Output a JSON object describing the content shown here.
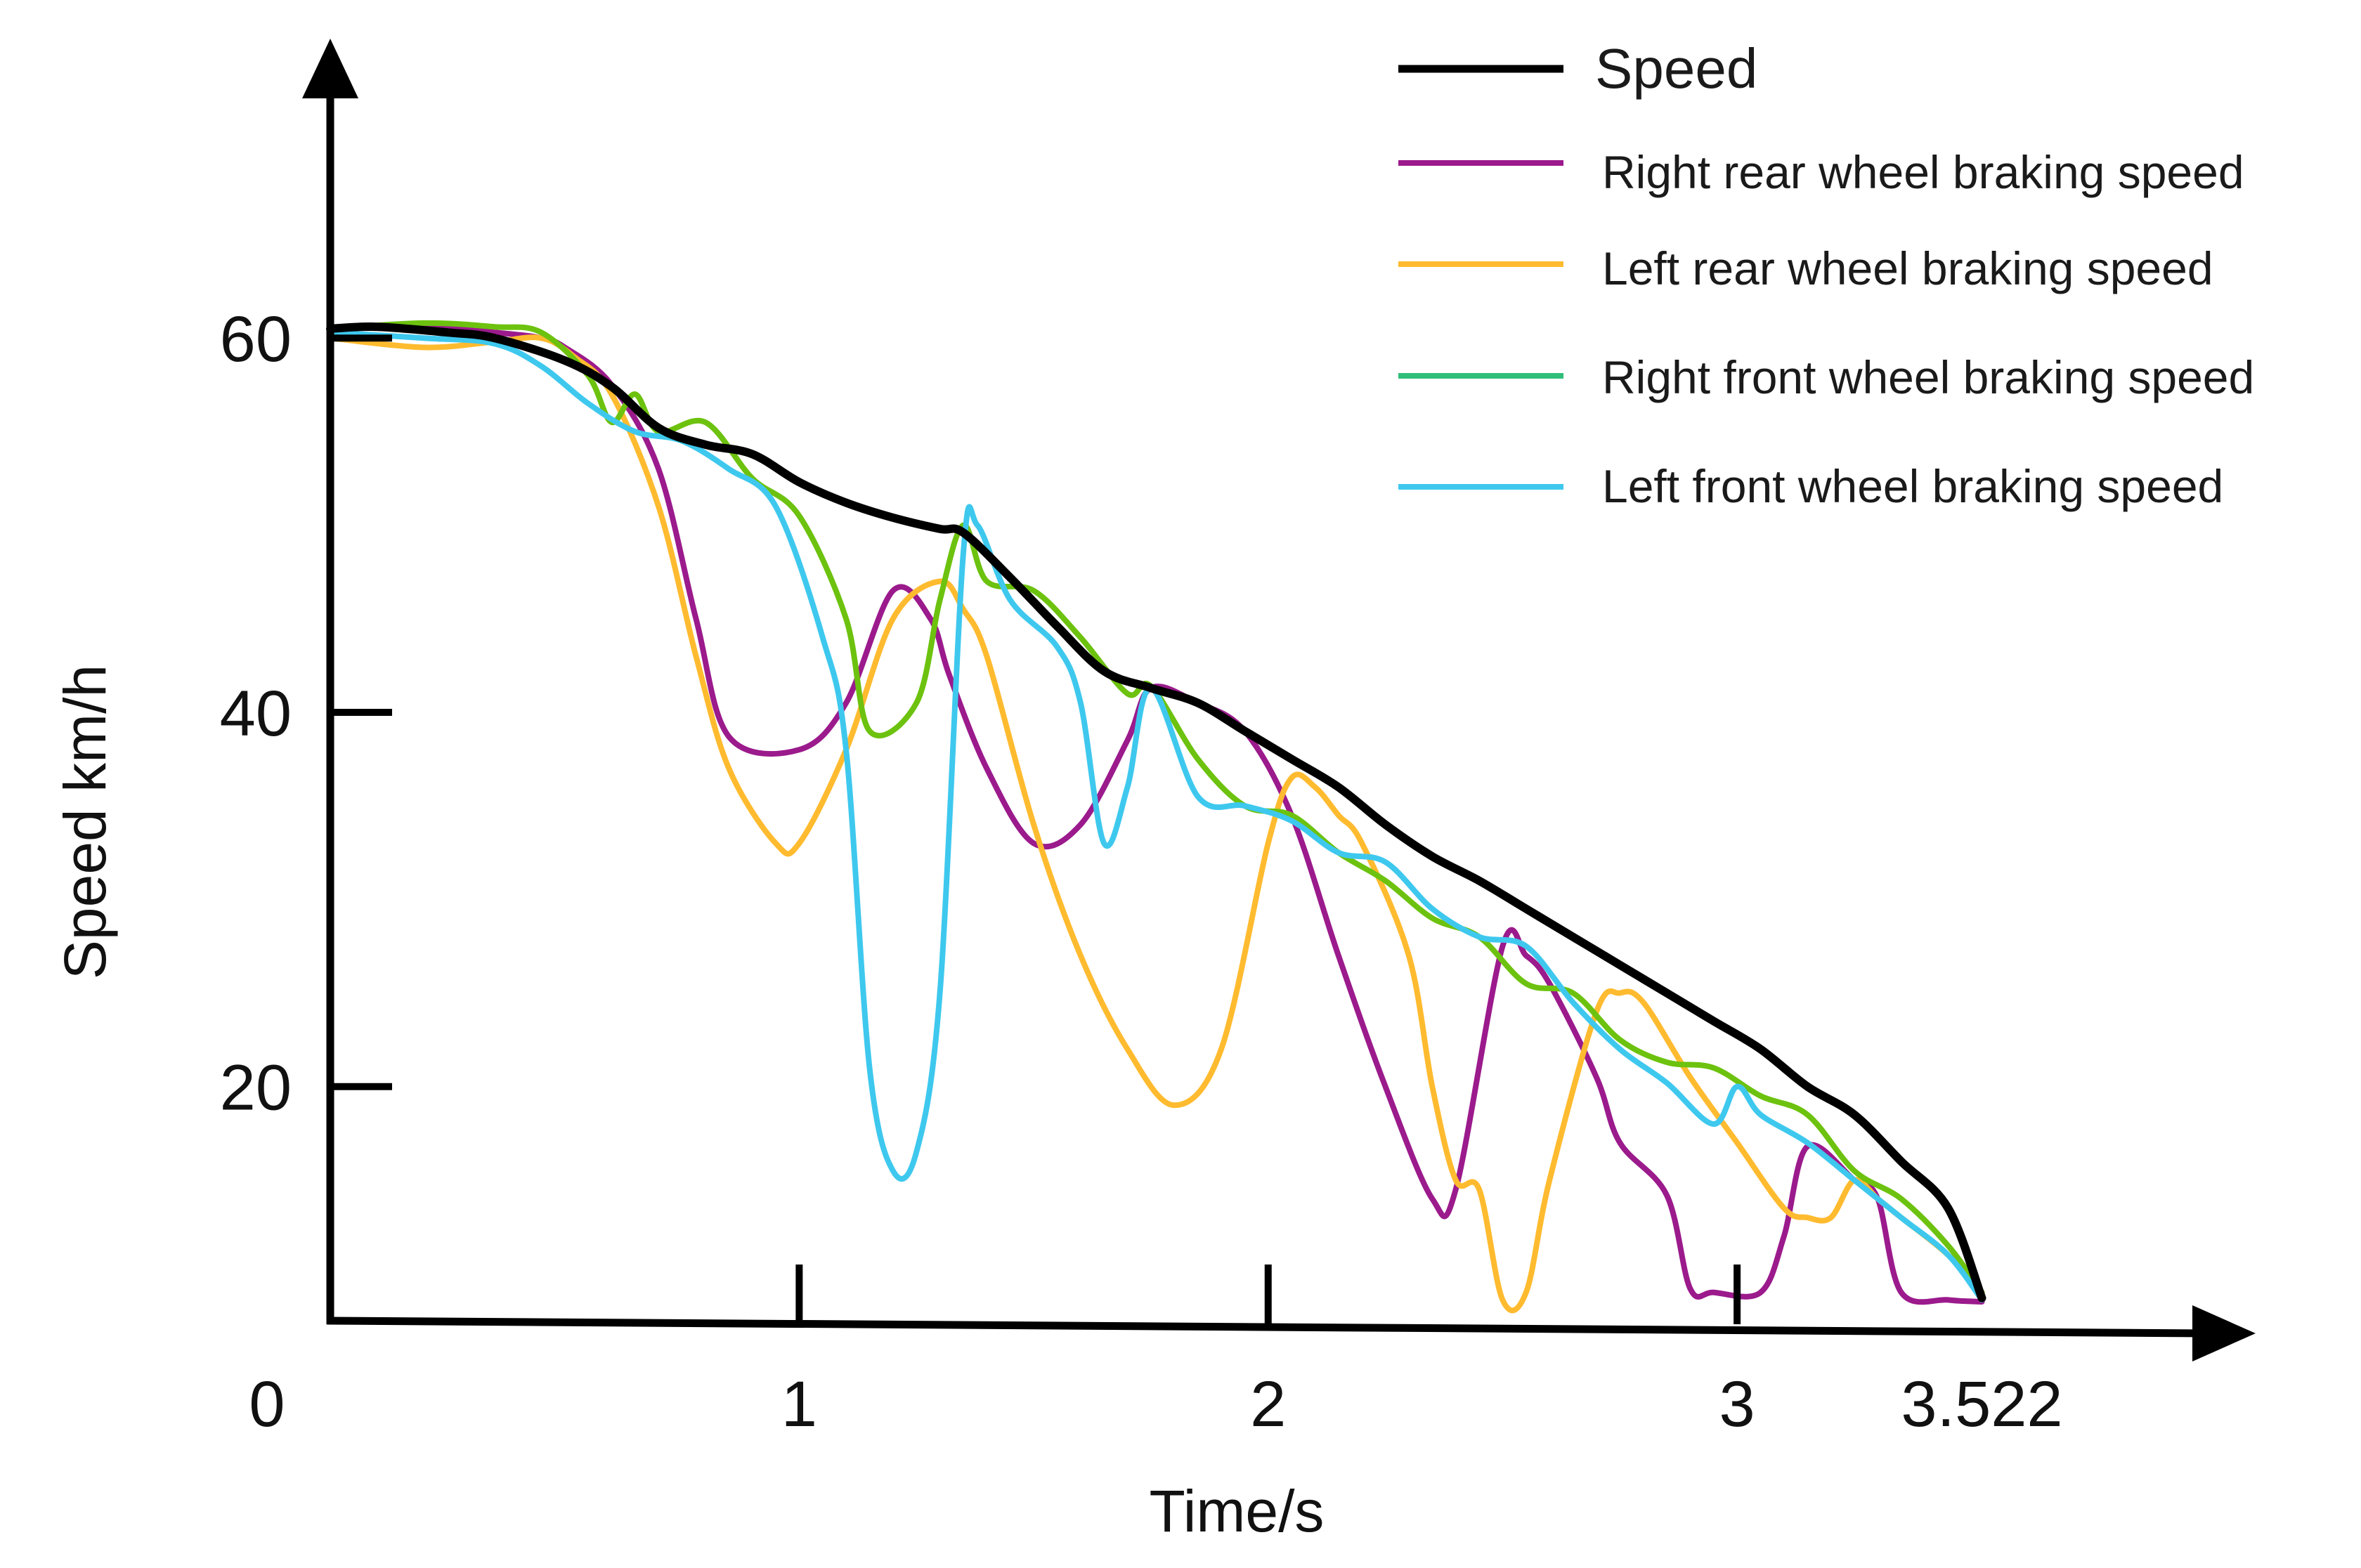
{
  "chart_data": {
    "type": "line",
    "title": "",
    "xlabel": "Time/s",
    "ylabel": "Speed km/h",
    "xlim": [
      0,
      3.8
    ],
    "ylim": [
      7.3,
      76
    ],
    "x_tick_labels": [
      {
        "value": 0,
        "label": "0"
      },
      {
        "value": 1,
        "label": "1"
      },
      {
        "value": 2,
        "label": "2"
      },
      {
        "value": 3,
        "label": "3"
      },
      {
        "value": 3.522,
        "label": "3.522"
      }
    ],
    "y_tick_labels": [
      {
        "value": 20,
        "label": "20"
      },
      {
        "value": 40,
        "label": "40"
      },
      {
        "value": 60,
        "label": "60"
      }
    ],
    "legend": {
      "position": "top-right",
      "entries": [
        "Speed",
        "Right rear wheel braking speed",
        "Left rear wheel braking speed",
        "Right front wheel braking speed",
        "Left front wheel braking speed"
      ]
    },
    "series": [
      {
        "name": "Speed",
        "color": "#000000",
        "x": [
          0,
          0.1,
          0.25,
          0.35,
          0.5,
          0.6,
          0.7,
          0.8,
          0.9,
          1.0,
          1.1,
          1.2,
          1.3,
          1.35,
          1.45,
          1.55,
          1.65,
          1.75,
          1.85,
          1.95,
          2.05,
          2.15,
          2.25,
          2.35,
          2.45,
          2.55,
          2.65,
          2.75,
          2.85,
          2.95,
          3.05,
          3.15,
          3.25,
          3.35,
          3.45,
          3.522
        ],
        "y": [
          60.5,
          60.6,
          60.3,
          60.0,
          58.8,
          57.4,
          55.2,
          54.3,
          53.8,
          52.3,
          51.2,
          50.4,
          49.8,
          49.6,
          47.2,
          44.6,
          42.2,
          41.3,
          40.5,
          39.0,
          37.5,
          36.0,
          34.0,
          32.3,
          31.0,
          29.5,
          28.0,
          26.5,
          25.0,
          23.5,
          22.0,
          20.0,
          18.5,
          16.0,
          13.5,
          8.7
        ]
      },
      {
        "name": "Right rear wheel braking speed",
        "color": "#9b1a8c",
        "x": [
          0,
          0.2,
          0.35,
          0.45,
          0.5,
          0.6,
          0.7,
          0.78,
          0.85,
          1.0,
          1.1,
          1.2,
          1.28,
          1.32,
          1.4,
          1.5,
          1.6,
          1.7,
          1.75,
          1.85,
          1.95,
          2.05,
          2.15,
          2.25,
          2.35,
          2.4,
          2.5,
          2.55,
          2.6,
          2.7,
          2.75,
          2.85,
          2.9,
          2.95,
          3.05,
          3.1,
          3.15,
          3.25,
          3.3,
          3.35,
          3.45,
          3.522
        ],
        "y": [
          60.5,
          60.6,
          60.3,
          60.0,
          59.5,
          57.5,
          53.0,
          45.0,
          38.7,
          38.0,
          40.5,
          46.5,
          45.0,
          42.0,
          37.0,
          33.0,
          34.0,
          38.5,
          41.3,
          40.5,
          39.0,
          34.5,
          27.0,
          20.0,
          14.0,
          14.5,
          27.5,
          27.0,
          25.5,
          20.5,
          17.0,
          14.2,
          9.2,
          9.0,
          9.0,
          12.0,
          16.8,
          15.0,
          14.0,
          9.0,
          8.6,
          8.5
        ]
      },
      {
        "name": "Left rear wheel braking speed",
        "color": "#ffbb2f",
        "x": [
          0,
          0.2,
          0.35,
          0.45,
          0.52,
          0.6,
          0.7,
          0.78,
          0.85,
          0.95,
          1.0,
          1.1,
          1.2,
          1.3,
          1.35,
          1.4,
          1.5,
          1.6,
          1.7,
          1.8,
          1.9,
          2.0,
          2.05,
          2.1,
          2.15,
          2.2,
          2.3,
          2.35,
          2.4,
          2.45,
          2.5,
          2.55,
          2.6,
          2.7,
          2.75,
          2.8,
          2.9,
          3.0,
          3.1,
          3.15,
          3.2,
          3.25,
          3.3,
          3.35,
          3.45,
          3.522
        ],
        "y": [
          60.0,
          59.5,
          59.8,
          60.0,
          59.0,
          57.0,
          51.0,
          43.0,
          37.0,
          33.0,
          33.0,
          38.0,
          45.0,
          47.0,
          45.5,
          43.0,
          34.0,
          27.0,
          22.0,
          19.0,
          22.0,
          33.0,
          36.5,
          36.0,
          34.5,
          33.0,
          27.0,
          20.0,
          15.0,
          14.5,
          8.6,
          9.0,
          15.0,
          24.0,
          25.0,
          24.5,
          20.5,
          17.0,
          13.5,
          13.0,
          13.0,
          15.0,
          14.0,
          13.0,
          11.0,
          9.0
        ]
      },
      {
        "name": "Right front wheel braking speed",
        "color": "#6cc20e",
        "x": [
          0,
          0.2,
          0.35,
          0.45,
          0.55,
          0.6,
          0.65,
          0.7,
          0.8,
          0.9,
          1.0,
          1.1,
          1.15,
          1.25,
          1.3,
          1.35,
          1.4,
          1.5,
          1.6,
          1.7,
          1.75,
          1.85,
          1.95,
          2.05,
          2.15,
          2.25,
          2.35,
          2.45,
          2.55,
          2.65,
          2.75,
          2.85,
          2.95,
          3.05,
          3.15,
          3.25,
          3.35,
          3.45,
          3.522
        ],
        "y": [
          60.5,
          60.8,
          60.6,
          60.3,
          58.0,
          55.5,
          57.0,
          55.0,
          55.5,
          52.5,
          50.5,
          45.0,
          39.0,
          40.5,
          46.0,
          50.0,
          47.0,
          46.5,
          44.0,
          41.0,
          41.4,
          37.5,
          35.0,
          34.5,
          32.5,
          31.0,
          29.0,
          28.0,
          25.5,
          25.0,
          22.5,
          21.3,
          21.0,
          19.5,
          18.5,
          15.5,
          14.0,
          11.5,
          9.0
        ]
      },
      {
        "name": "Left front wheel braking speed",
        "color": "#3ec8ee",
        "x": [
          0,
          0.2,
          0.35,
          0.45,
          0.55,
          0.65,
          0.75,
          0.85,
          0.95,
          1.05,
          1.1,
          1.15,
          1.2,
          1.25,
          1.3,
          1.35,
          1.38,
          1.45,
          1.55,
          1.6,
          1.65,
          1.7,
          1.75,
          1.85,
          1.95,
          2.05,
          2.15,
          2.25,
          2.35,
          2.45,
          2.55,
          2.65,
          2.75,
          2.85,
          2.95,
          3.0,
          3.05,
          3.15,
          3.25,
          3.35,
          3.45,
          3.522
        ],
        "y": [
          60.3,
          60.0,
          59.7,
          58.5,
          56.5,
          55.0,
          54.5,
          53.0,
          51.0,
          44.0,
          38.0,
          21.0,
          15.5,
          16.5,
          25.0,
          48.5,
          50.0,
          46.0,
          43.5,
          40.5,
          33.0,
          36.0,
          41.3,
          35.5,
          35.0,
          34.2,
          32.5,
          32.0,
          29.5,
          28.0,
          27.5,
          24.5,
          22.0,
          20.2,
          18.0,
          20.0,
          18.5,
          17.0,
          15.0,
          13.0,
          11.0,
          8.6
        ]
      }
    ]
  }
}
